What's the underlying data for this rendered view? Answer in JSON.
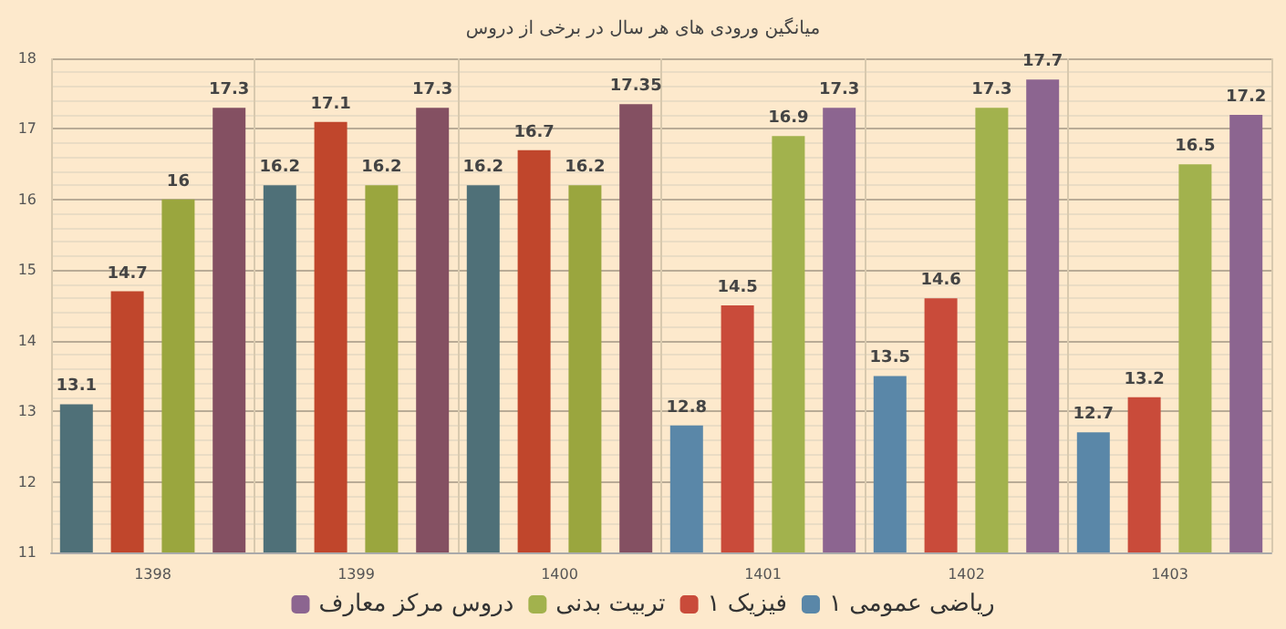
{
  "chart_data": {
    "type": "bar",
    "title": "میانگین ورودی های هر سال در برخی از دروس",
    "categories": [
      "1398",
      "1399",
      "1400",
      "1401",
      "1402",
      "1403"
    ],
    "series": [
      {
        "name": "ریاضی عمومی ۱",
        "color": "#5a87a8",
        "colors": [
          "#4f7078",
          "#4f7078",
          "#4f7078",
          "#5a87a8",
          "#5a87a8",
          "#5a87a8"
        ],
        "values": [
          13.1,
          16.2,
          16.2,
          12.8,
          13.5,
          12.7
        ]
      },
      {
        "name": "فیزیک ۱",
        "color": "#c94b3a",
        "colors": [
          "#c0462c",
          "#c0462c",
          "#c0462c",
          "#c94b3a",
          "#c94b3a",
          "#c94b3a"
        ],
        "values": [
          14.7,
          17.1,
          16.7,
          14.5,
          14.6,
          13.2
        ]
      },
      {
        "name": "تربیت بدنی",
        "color": "#a2b24d",
        "colors": [
          "#9aa63e",
          "#9aa63e",
          "#9aa63e",
          "#a2b24d",
          "#a2b24d",
          "#a2b24d"
        ],
        "values": [
          16,
          16.2,
          16.2,
          16.9,
          17.3,
          16.5
        ]
      },
      {
        "name": "دروس مرکز معارف",
        "color": "#8c6590",
        "colors": [
          "#845062",
          "#845062",
          "#845062",
          "#8c6590",
          "#8c6590",
          "#8c6590"
        ],
        "values": [
          17.3,
          17.3,
          17.35,
          17.3,
          17.7,
          17.2
        ]
      }
    ],
    "ylim": [
      11,
      18
    ],
    "yticks": [
      11,
      12,
      13,
      14,
      15,
      16,
      17,
      18
    ],
    "grid": true,
    "legend": "bottom",
    "data_labels": true
  }
}
